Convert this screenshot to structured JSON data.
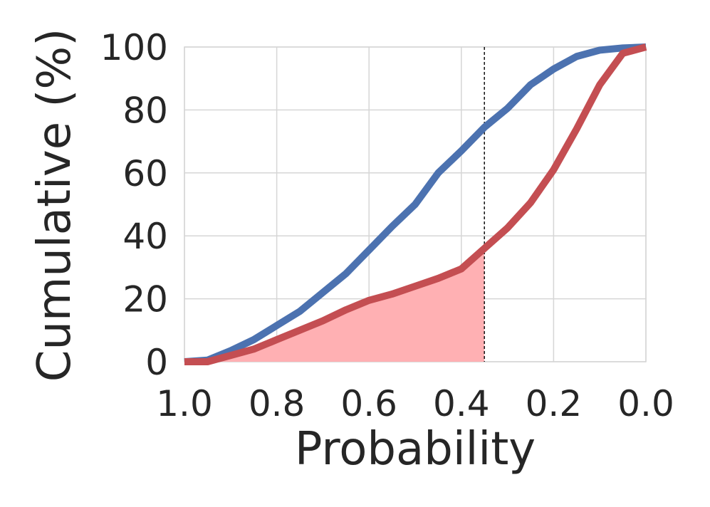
{
  "chart_data": {
    "type": "line",
    "xlabel": "Probability",
    "ylabel": "Cumulative (%)",
    "xlim": [
      1.0,
      0.0
    ],
    "ylim": [
      0,
      100
    ],
    "x_ticks": [
      1.0,
      0.8,
      0.6,
      0.4,
      0.2,
      0.0
    ],
    "x_tick_labels": [
      "1.0",
      "0.8",
      "0.6",
      "0.4",
      "0.2",
      "0.0"
    ],
    "y_ticks": [
      0,
      20,
      40,
      60,
      80,
      100
    ],
    "y_tick_labels": [
      "0",
      "20",
      "40",
      "60",
      "80",
      "100"
    ],
    "grid": true,
    "threshold": 0.35,
    "shaded_series": 1,
    "series": [
      {
        "color": "#4c72b0",
        "x": [
          1.0,
          0.95,
          0.9,
          0.85,
          0.8,
          0.75,
          0.7,
          0.65,
          0.6,
          0.55,
          0.5,
          0.45,
          0.4,
          0.35,
          0.3,
          0.25,
          0.2,
          0.15,
          0.1,
          0.05,
          0.0
        ],
        "y": [
          0,
          0.5,
          3.5,
          7,
          11.5,
          16,
          22,
          28,
          35.5,
          43,
          50,
          60,
          67,
          74.5,
          80.5,
          88,
          93,
          97,
          99,
          99.7,
          100
        ]
      },
      {
        "color": "#c44e52",
        "x": [
          1.0,
          0.95,
          0.9,
          0.85,
          0.8,
          0.75,
          0.7,
          0.65,
          0.6,
          0.55,
          0.5,
          0.45,
          0.4,
          0.35,
          0.3,
          0.25,
          0.2,
          0.15,
          0.1,
          0.05,
          0.0
        ],
        "y": [
          0,
          0,
          2,
          4,
          7,
          10,
          13,
          16.5,
          19.5,
          21.5,
          24,
          26.5,
          29.5,
          36,
          42.5,
          50.5,
          61,
          74,
          88,
          98,
          100
        ]
      }
    ],
    "fill_color": "#ffb0b3"
  }
}
